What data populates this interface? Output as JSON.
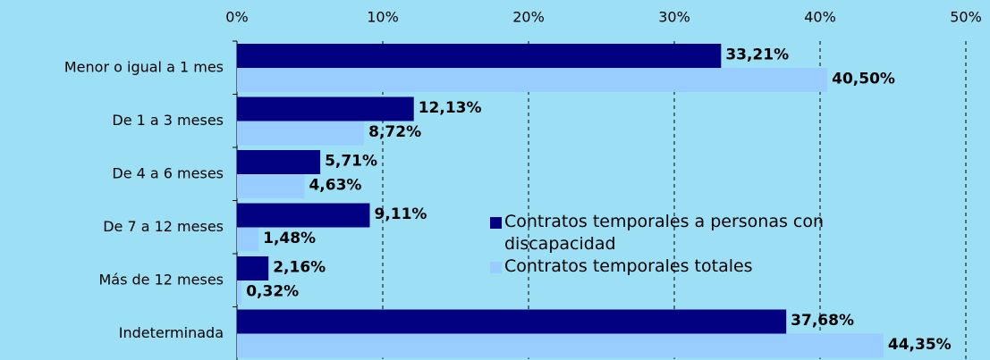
{
  "chart_data": {
    "type": "bar",
    "orientation": "horizontal",
    "categories": [
      "Menor o igual a 1 mes",
      "De 1 a 3 meses",
      "De 4 a 6 meses",
      "De 7 a 12 meses",
      "Más de 12 meses",
      "Indeterminada"
    ],
    "series": [
      {
        "name": "Contratos temporales a personas con discapacidad",
        "color": "#000080",
        "values": [
          33.21,
          12.13,
          5.71,
          9.11,
          2.16,
          37.68
        ],
        "value_labels": [
          "33,21%",
          "12,13%",
          "5,71%",
          "9,11%",
          "2,16%",
          "37,68%"
        ]
      },
      {
        "name": "Contratos temporales totales",
        "color": "#99ccff",
        "values": [
          40.5,
          8.72,
          4.63,
          1.48,
          0.32,
          44.35
        ],
        "value_labels": [
          "40,50%",
          "8,72%",
          "4,63%",
          "1,48%",
          "0,32%",
          "44,35%"
        ]
      }
    ],
    "xlim": [
      0,
      50
    ],
    "xticks": [
      {
        "value": 0,
        "label": "0%"
      },
      {
        "value": 10,
        "label": "10%"
      },
      {
        "value": 20,
        "label": "20%"
      },
      {
        "value": 30,
        "label": "30%"
      },
      {
        "value": 40,
        "label": "40%"
      },
      {
        "value": 50,
        "label": "50%"
      }
    ],
    "grid": true
  }
}
